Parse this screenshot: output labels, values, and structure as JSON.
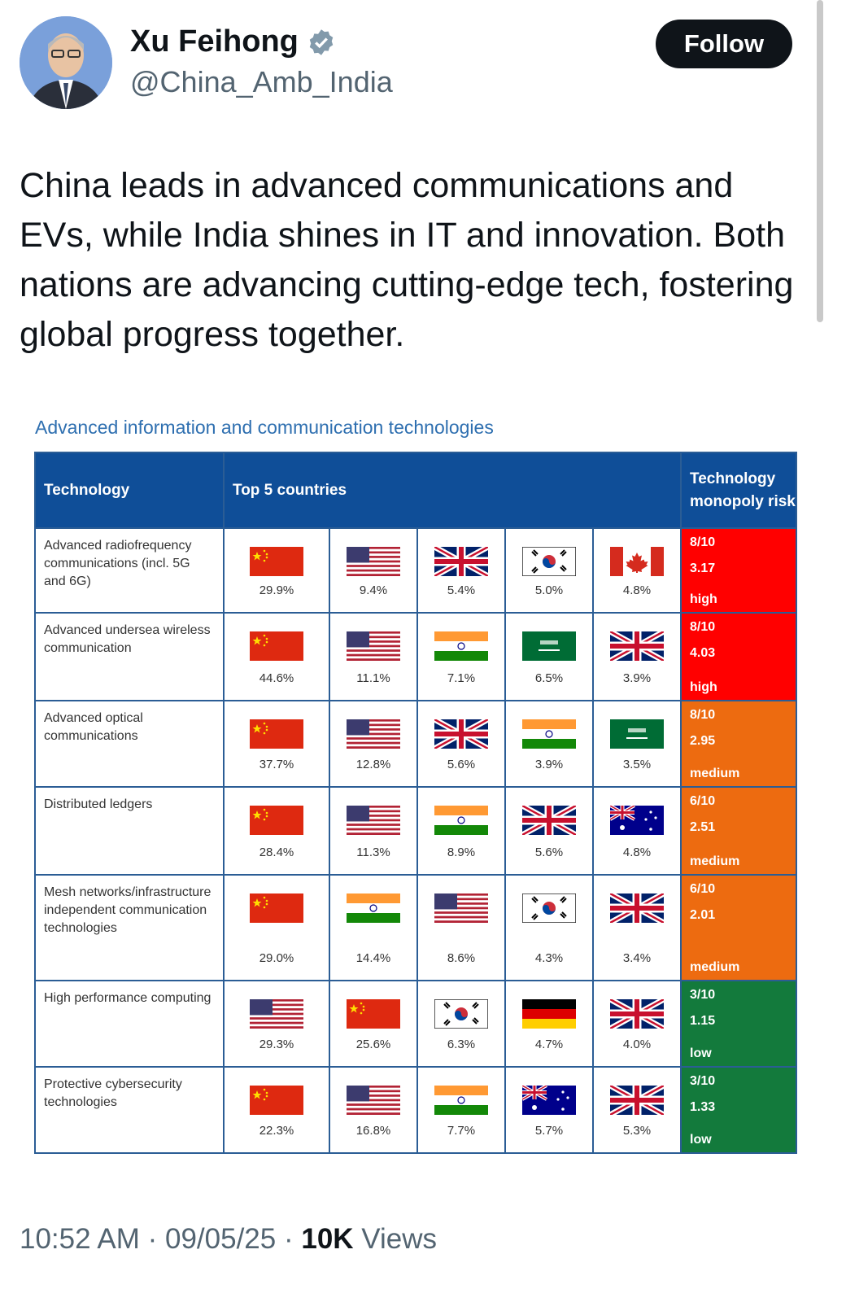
{
  "author": {
    "name": "Xu Feihong",
    "handle": "@China_Amb_India"
  },
  "follow_label": "Follow",
  "tweet_text": "China leads in advanced communications and EVs, while India shines in IT and innovation. Both nations are advancing cutting-edge tech, fostering global progress together.",
  "figure": {
    "title": "Advanced information and communication technologies",
    "headers": {
      "technology": "Technology",
      "top5": "Top 5 countries",
      "risk": "Technology monopoly risk"
    },
    "rows": [
      {
        "tech": "Advanced radiofrequency communications (incl. 5G and 6G)",
        "countries": [
          {
            "flag": "china",
            "pct": "29.9%"
          },
          {
            "flag": "usa",
            "pct": "9.4%"
          },
          {
            "flag": "uk",
            "pct": "5.4%"
          },
          {
            "flag": "korea",
            "pct": "5.0%"
          },
          {
            "flag": "canada",
            "pct": "4.8%"
          }
        ],
        "risk": {
          "score": "8/10",
          "value": "3.17",
          "level": "high",
          "color": "#ff0000"
        }
      },
      {
        "tech": "Advanced undersea wireless communication",
        "countries": [
          {
            "flag": "china",
            "pct": "44.6%"
          },
          {
            "flag": "usa",
            "pct": "11.1%"
          },
          {
            "flag": "india",
            "pct": "7.1%"
          },
          {
            "flag": "saudi",
            "pct": "6.5%"
          },
          {
            "flag": "uk",
            "pct": "3.9%"
          }
        ],
        "risk": {
          "score": "8/10",
          "value": "4.03",
          "level": "high",
          "color": "#ff0000"
        }
      },
      {
        "tech": "Advanced optical communications",
        "countries": [
          {
            "flag": "china",
            "pct": "37.7%"
          },
          {
            "flag": "usa",
            "pct": "12.8%"
          },
          {
            "flag": "uk",
            "pct": "5.6%"
          },
          {
            "flag": "india",
            "pct": "3.9%"
          },
          {
            "flag": "saudi",
            "pct": "3.5%"
          }
        ],
        "risk": {
          "score": "8/10",
          "value": "2.95",
          "level": "medium",
          "color": "#ed6b10"
        }
      },
      {
        "tech": "Distributed ledgers",
        "countries": [
          {
            "flag": "china",
            "pct": "28.4%"
          },
          {
            "flag": "usa",
            "pct": "11.3%"
          },
          {
            "flag": "india",
            "pct": "8.9%"
          },
          {
            "flag": "uk",
            "pct": "5.6%"
          },
          {
            "flag": "australia",
            "pct": "4.8%"
          }
        ],
        "risk": {
          "score": "6/10",
          "value": "2.51",
          "level": "medium",
          "color": "#ed6b10"
        }
      },
      {
        "tech": "Mesh networks/infrastructure independent communication technologies",
        "countries": [
          {
            "flag": "china",
            "pct": "29.0%"
          },
          {
            "flag": "india",
            "pct": "14.4%"
          },
          {
            "flag": "usa",
            "pct": "8.6%"
          },
          {
            "flag": "korea",
            "pct": "4.3%"
          },
          {
            "flag": "uk",
            "pct": "3.4%"
          }
        ],
        "risk": {
          "score": "6/10",
          "value": "2.01",
          "level": "medium",
          "color": "#ed6b10"
        }
      },
      {
        "tech": "High performance computing",
        "countries": [
          {
            "flag": "usa",
            "pct": "29.3%"
          },
          {
            "flag": "china",
            "pct": "25.6%"
          },
          {
            "flag": "korea",
            "pct": "6.3%"
          },
          {
            "flag": "germany",
            "pct": "4.7%"
          },
          {
            "flag": "uk",
            "pct": "4.0%"
          }
        ],
        "risk": {
          "score": "3/10",
          "value": "1.15",
          "level": "low",
          "color": "#137a3c"
        }
      },
      {
        "tech": "Protective cybersecurity technologies",
        "countries": [
          {
            "flag": "china",
            "pct": "22.3%"
          },
          {
            "flag": "usa",
            "pct": "16.8%"
          },
          {
            "flag": "india",
            "pct": "7.7%"
          },
          {
            "flag": "australia",
            "pct": "5.7%"
          },
          {
            "flag": "uk",
            "pct": "5.3%"
          }
        ],
        "risk": {
          "score": "3/10",
          "value": "1.33",
          "level": "low",
          "color": "#137a3c"
        }
      }
    ]
  },
  "footer": {
    "time": "10:52 AM",
    "sep1": " · ",
    "date": "09/05/25",
    "sep2": " · ",
    "views_count": "10K",
    "views_label": " Views"
  },
  "icons": {
    "verified": "verified-badge-icon",
    "avatar": "profile-photo"
  }
}
